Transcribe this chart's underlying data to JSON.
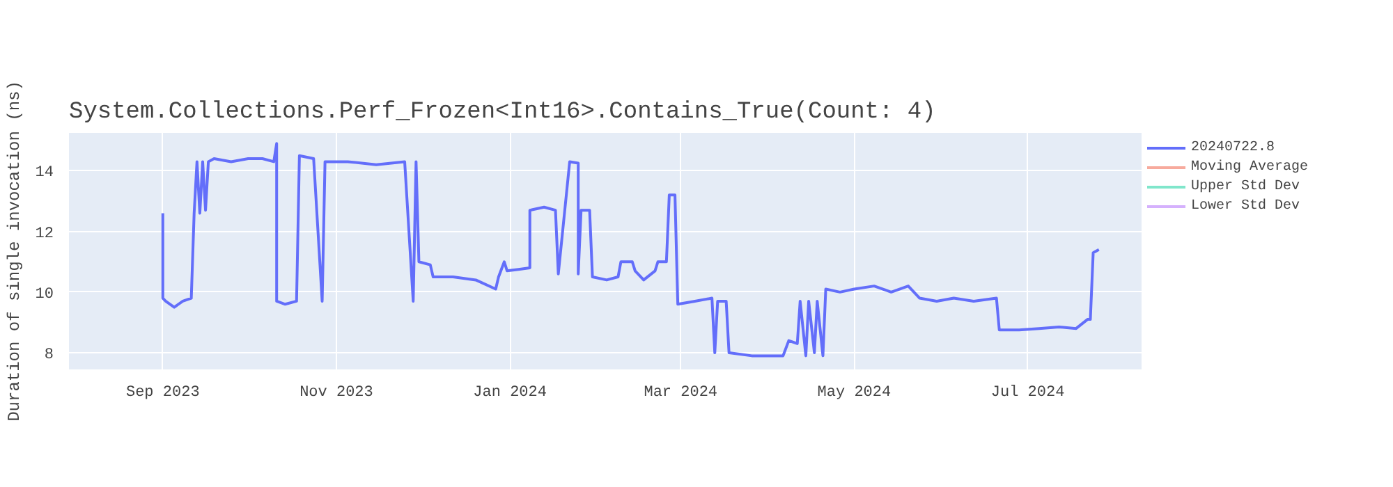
{
  "chart_data": {
    "type": "line",
    "title": "System.Collections.Perf_Frozen<Int16>.Contains_True(Count: 4)",
    "ylabel": "Duration of single invocation (ns)",
    "xlim": [
      "2023-07-30",
      "2024-08-10"
    ],
    "xticks": [
      {
        "value": "2023-09-01",
        "label": "Sep 2023"
      },
      {
        "value": "2023-11-01",
        "label": "Nov 2023"
      },
      {
        "value": "2024-01-01",
        "label": "Jan 2024"
      },
      {
        "value": "2024-03-01",
        "label": "Mar 2024"
      },
      {
        "value": "2024-05-01",
        "label": "May 2024"
      },
      {
        "value": "2024-07-01",
        "label": "Jul 2024"
      }
    ],
    "ylim": [
      7.45,
      15.25
    ],
    "yticks": [
      8,
      10,
      12,
      14
    ],
    "grid": true,
    "legend": "top right",
    "marker": "none",
    "line_style": "solid",
    "x": [
      "2023-09-01",
      "2023-09-01",
      "2023-09-02",
      "2023-09-05",
      "2023-09-08",
      "2023-09-11",
      "2023-09-12",
      "2023-09-13",
      "2023-09-14",
      "2023-09-15",
      "2023-09-16",
      "2023-09-17",
      "2023-09-19",
      "2023-09-25",
      "2023-10-01",
      "2023-10-06",
      "2023-10-10",
      "2023-10-11",
      "2023-10-11",
      "2023-10-14",
      "2023-10-18",
      "2023-10-19",
      "2023-10-24",
      "2023-10-27",
      "2023-10-28",
      "2023-11-05",
      "2023-11-15",
      "2023-11-25",
      "2023-11-28",
      "2023-11-29",
      "2023-11-30",
      "2023-12-04",
      "2023-12-05",
      "2023-12-12",
      "2023-12-20",
      "2023-12-27",
      "2023-12-28",
      "2023-12-30",
      "2023-12-31",
      "2024-01-04",
      "2024-01-08",
      "2024-01-08",
      "2024-01-13",
      "2024-01-17",
      "2024-01-18",
      "2024-01-22",
      "2024-01-25",
      "2024-01-25",
      "2024-01-26",
      "2024-01-29",
      "2024-01-30",
      "2024-02-04",
      "2024-02-08",
      "2024-02-09",
      "2024-02-13",
      "2024-02-14",
      "2024-02-17",
      "2024-02-21",
      "2024-02-22",
      "2024-02-25",
      "2024-02-26",
      "2024-02-28",
      "2024-02-29",
      "2024-03-06",
      "2024-03-12",
      "2024-03-13",
      "2024-03-14",
      "2024-03-17",
      "2024-03-18",
      "2024-03-26",
      "2024-04-06",
      "2024-04-08",
      "2024-04-11",
      "2024-04-12",
      "2024-04-14",
      "2024-04-15",
      "2024-04-17",
      "2024-04-18",
      "2024-04-20",
      "2024-04-21",
      "2024-04-26",
      "2024-05-01",
      "2024-05-08",
      "2024-05-14",
      "2024-05-20",
      "2024-05-24",
      "2024-05-30",
      "2024-06-05",
      "2024-06-12",
      "2024-06-20",
      "2024-06-21",
      "2024-06-28",
      "2024-07-05",
      "2024-07-12",
      "2024-07-18",
      "2024-07-22",
      "2024-07-23",
      "2024-07-24",
      "2024-07-26"
    ],
    "series": [
      {
        "name": "20240722.8",
        "color": "#636efa",
        "values": [
          12.6,
          9.8,
          9.7,
          9.5,
          9.7,
          9.8,
          12.6,
          14.3,
          12.6,
          14.3,
          12.7,
          14.3,
          14.4,
          14.3,
          14.4,
          14.4,
          14.3,
          14.9,
          9.7,
          9.6,
          9.7,
          14.5,
          14.4,
          9.7,
          14.3,
          14.3,
          14.2,
          14.3,
          9.7,
          14.3,
          11.0,
          10.9,
          10.5,
          10.5,
          10.4,
          10.1,
          10.5,
          11.0,
          10.7,
          10.75,
          10.8,
          12.7,
          12.8,
          12.7,
          10.6,
          14.3,
          14.25,
          10.6,
          12.7,
          12.7,
          10.5,
          10.4,
          10.5,
          11.0,
          11.0,
          10.7,
          10.4,
          10.7,
          11.0,
          11.0,
          13.2,
          13.2,
          9.6,
          9.7,
          9.8,
          8.0,
          9.7,
          9.7,
          8.0,
          7.9,
          7.9,
          8.4,
          8.3,
          9.7,
          7.9,
          9.7,
          8.0,
          9.7,
          7.9,
          10.1,
          10.0,
          10.1,
          10.2,
          10.0,
          10.2,
          9.8,
          9.7,
          9.8,
          9.7,
          9.8,
          8.75,
          8.75,
          8.8,
          8.85,
          8.8,
          9.1,
          9.1,
          11.3,
          11.4
        ]
      },
      {
        "name": "Moving Average",
        "color": "#f7aa9d",
        "values": [
          null,
          null,
          null,
          null,
          null,
          null,
          null,
          null,
          null,
          null,
          null,
          null,
          null,
          null,
          null,
          null,
          null,
          null,
          null,
          null,
          null,
          null,
          null,
          null,
          null,
          null,
          null,
          null,
          null,
          null,
          null,
          null,
          null,
          null,
          null,
          null,
          null,
          null,
          null,
          null,
          null,
          null,
          null,
          null,
          null,
          null,
          null,
          null,
          null,
          null,
          null,
          null,
          null,
          null,
          null,
          null,
          null,
          null,
          null,
          null,
          null,
          null,
          null,
          null,
          null,
          null,
          null,
          null,
          null,
          null,
          null,
          null,
          null,
          null,
          null,
          null,
          null,
          null,
          null,
          null,
          null,
          null,
          null,
          null,
          null,
          null,
          null,
          null,
          null,
          null,
          null,
          null,
          null,
          null,
          null,
          null,
          null,
          null,
          null
        ]
      },
      {
        "name": "Upper Std Dev",
        "color": "#80e6cb",
        "values": [
          null,
          null,
          null,
          null,
          null,
          null,
          null,
          null,
          null,
          null,
          null,
          null,
          null,
          null,
          null,
          null,
          null,
          null,
          null,
          null,
          null,
          null,
          null,
          null,
          null,
          null,
          null,
          null,
          null,
          null,
          null,
          null,
          null,
          null,
          null,
          null,
          null,
          null,
          null,
          null,
          null,
          null,
          null,
          null,
          null,
          null,
          null,
          null,
          null,
          null,
          null,
          null,
          null,
          null,
          null,
          null,
          null,
          null,
          null,
          null,
          null,
          null,
          null,
          null,
          null,
          null,
          null,
          null,
          null,
          null,
          null,
          null,
          null,
          null,
          null,
          null,
          null,
          null,
          null,
          null,
          null,
          null,
          null,
          null,
          null,
          null,
          null,
          null,
          null,
          null,
          null,
          null,
          null,
          null,
          null,
          null,
          null,
          null,
          null
        ]
      },
      {
        "name": "Lower Std Dev",
        "color": "#d5b1fd",
        "values": [
          null,
          null,
          null,
          null,
          null,
          null,
          null,
          null,
          null,
          null,
          null,
          null,
          null,
          null,
          null,
          null,
          null,
          null,
          null,
          null,
          null,
          null,
          null,
          null,
          null,
          null,
          null,
          null,
          null,
          null,
          null,
          null,
          null,
          null,
          null,
          null,
          null,
          null,
          null,
          null,
          null,
          null,
          null,
          null,
          null,
          null,
          null,
          null,
          null,
          null,
          null,
          null,
          null,
          null,
          null,
          null,
          null,
          null,
          null,
          null,
          null,
          null,
          null,
          null,
          null,
          null,
          null,
          null,
          null,
          null,
          null,
          null,
          null,
          null,
          null,
          null,
          null,
          null,
          null,
          null,
          null,
          null,
          null,
          null,
          null,
          null,
          null,
          null,
          null,
          null,
          null,
          null,
          null,
          null,
          null,
          null,
          null,
          null,
          null
        ]
      }
    ]
  }
}
